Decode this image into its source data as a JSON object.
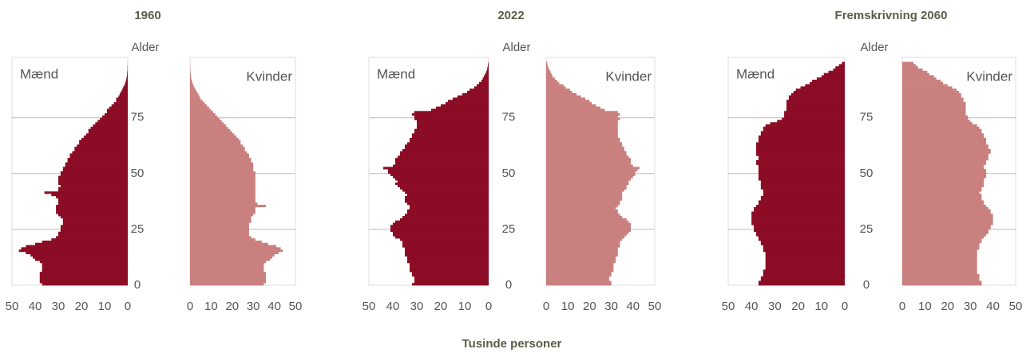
{
  "xlabel": "Tusinde personer",
  "chart_data": [
    {
      "type": "pyramid",
      "title": "1960",
      "ylabel": "Alder",
      "ylim": [
        0,
        102
      ],
      "yticks": [
        0,
        25,
        50,
        75
      ],
      "ages": [
        0,
        1,
        2,
        3,
        4,
        5,
        6,
        7,
        8,
        9,
        10,
        11,
        12,
        13,
        14,
        15,
        16,
        17,
        18,
        19,
        20,
        21,
        22,
        23,
        24,
        25,
        26,
        27,
        28,
        29,
        30,
        31,
        32,
        33,
        34,
        35,
        36,
        37,
        38,
        39,
        40,
        41,
        42,
        43,
        44,
        45,
        46,
        47,
        48,
        49,
        50,
        51,
        52,
        53,
        54,
        55,
        56,
        57,
        58,
        59,
        60,
        61,
        62,
        63,
        64,
        65,
        66,
        67,
        68,
        69,
        70,
        71,
        72,
        73,
        74,
        75,
        76,
        77,
        78,
        79,
        80,
        81,
        82,
        83,
        84,
        85,
        86,
        87,
        88,
        89,
        90,
        91,
        92,
        93,
        94,
        95,
        96,
        97,
        98,
        99
      ],
      "series": [
        {
          "name": "Mænd",
          "color": "#8b0c24",
          "xlim": [
            50,
            0
          ],
          "xticks": [
            50,
            40,
            30,
            20,
            10,
            0
          ],
          "values": [
            37,
            38,
            38,
            38,
            38,
            38,
            37,
            37,
            37,
            37,
            38,
            40,
            41,
            42,
            44,
            47,
            46,
            44,
            40,
            37,
            33,
            31,
            30,
            30,
            29,
            29,
            29,
            28,
            28,
            28,
            29,
            30,
            31,
            31,
            31,
            31,
            30,
            30,
            30,
            31,
            33,
            36,
            30,
            30,
            29,
            30,
            30,
            30,
            30,
            29,
            29,
            28,
            28,
            27,
            27,
            26,
            26,
            25,
            25,
            24,
            23,
            23,
            22,
            21,
            21,
            20,
            19,
            18,
            17,
            17,
            16,
            15,
            14,
            13,
            12,
            11,
            10,
            9,
            9,
            8,
            7,
            6,
            5,
            5,
            4,
            3.5,
            3,
            2.5,
            2,
            1.5,
            1.1,
            0.8,
            0.6,
            0.4,
            0.3,
            0.2,
            0.1,
            0.1,
            0.05,
            0.02
          ]
        },
        {
          "name": "Kvinder",
          "color": "#c9807e",
          "xlim": [
            0,
            50
          ],
          "xticks": [
            0,
            10,
            20,
            30,
            40,
            50
          ],
          "values": [
            35,
            36,
            36,
            36,
            36,
            36,
            35,
            35,
            35,
            35,
            36,
            38,
            39,
            40,
            42,
            44,
            43,
            41,
            37,
            34,
            31,
            29,
            28,
            28,
            28,
            28,
            28,
            28,
            29,
            29,
            29,
            30,
            31,
            31,
            31,
            36,
            32,
            31,
            31,
            31,
            31,
            31,
            31,
            31,
            31,
            31,
            31,
            31,
            31,
            31,
            31,
            30,
            30,
            30,
            30,
            29,
            29,
            28,
            28,
            27,
            26,
            26,
            25,
            24,
            24,
            23,
            22,
            21,
            20,
            19,
            18,
            17,
            16,
            15,
            14,
            13,
            12,
            11,
            10,
            9,
            8,
            7,
            6,
            5,
            4.5,
            4,
            3.3,
            2.7,
            2.1,
            1.6,
            1.2,
            0.9,
            0.6,
            0.4,
            0.3,
            0.2,
            0.1,
            0.1,
            0.05,
            0.02
          ]
        }
      ]
    },
    {
      "type": "pyramid",
      "title": "2022",
      "ylabel": "Alder",
      "ylim": [
        0,
        102
      ],
      "yticks": [
        0,
        25,
        50,
        75
      ],
      "ages": [
        0,
        1,
        2,
        3,
        4,
        5,
        6,
        7,
        8,
        9,
        10,
        11,
        12,
        13,
        14,
        15,
        16,
        17,
        18,
        19,
        20,
        21,
        22,
        23,
        24,
        25,
        26,
        27,
        28,
        29,
        30,
        31,
        32,
        33,
        34,
        35,
        36,
        37,
        38,
        39,
        40,
        41,
        42,
        43,
        44,
        45,
        46,
        47,
        48,
        49,
        50,
        51,
        52,
        53,
        54,
        55,
        56,
        57,
        58,
        59,
        60,
        61,
        62,
        63,
        64,
        65,
        66,
        67,
        68,
        69,
        70,
        71,
        72,
        73,
        74,
        75,
        76,
        77,
        78,
        79,
        80,
        81,
        82,
        83,
        84,
        85,
        86,
        87,
        88,
        89,
        90,
        91,
        92,
        93,
        94,
        95,
        96,
        97,
        98,
        99
      ],
      "series": [
        {
          "name": "Mænd",
          "color": "#8b0c24",
          "xlim": [
            50,
            0
          ],
          "xticks": [
            50,
            40,
            30,
            20,
            10,
            0
          ],
          "values": [
            32,
            31,
            31,
            31,
            32,
            32,
            33,
            33,
            33,
            33,
            34,
            34,
            34,
            35,
            35,
            35,
            35,
            36,
            36,
            36,
            37,
            39,
            40,
            40,
            41,
            41,
            41,
            40,
            39,
            37,
            36,
            35,
            34,
            34,
            33,
            33,
            34,
            35,
            35,
            35,
            34,
            35,
            36,
            37,
            38,
            39,
            38,
            39,
            40,
            41,
            42,
            42,
            44,
            40,
            39,
            39,
            39,
            38,
            37,
            37,
            36,
            35,
            35,
            34,
            33,
            33,
            32,
            32,
            31,
            31,
            30,
            30,
            30,
            30,
            31,
            31,
            32,
            31,
            24,
            22,
            20,
            18,
            17,
            15,
            13,
            11,
            9,
            8,
            6,
            5,
            4,
            3,
            2.5,
            2,
            1.5,
            1,
            0.7,
            0.5,
            0.3,
            0.2
          ]
        },
        {
          "name": "Kvinder",
          "color": "#c9807e",
          "xlim": [
            0,
            50
          ],
          "xticks": [
            0,
            10,
            20,
            30,
            40,
            50
          ],
          "values": [
            30,
            30,
            29,
            29,
            30,
            30,
            31,
            31,
            31,
            31,
            32,
            32,
            32,
            33,
            33,
            33,
            33,
            34,
            34,
            34,
            35,
            36,
            37,
            38,
            39,
            39,
            39,
            39,
            38,
            37,
            35,
            34,
            33,
            33,
            32,
            33,
            34,
            34,
            35,
            35,
            35,
            35,
            36,
            37,
            37,
            38,
            38,
            39,
            40,
            41,
            41,
            42,
            43,
            40,
            39,
            39,
            39,
            38,
            37,
            37,
            36,
            36,
            35,
            35,
            34,
            34,
            33,
            33,
            33,
            33,
            33,
            33,
            33,
            33,
            34,
            33,
            34,
            33,
            27,
            25,
            23,
            21,
            20,
            18,
            16,
            14,
            12,
            11,
            9,
            8,
            6,
            5,
            4,
            3,
            2.5,
            2,
            1.5,
            1,
            0.7,
            0.5
          ]
        }
      ]
    },
    {
      "type": "pyramid",
      "title": "Fremskrivning 2060",
      "ylabel": "Alder",
      "ylim": [
        0,
        102
      ],
      "yticks": [
        0,
        25,
        50,
        75
      ],
      "ages": [
        0,
        1,
        2,
        3,
        4,
        5,
        6,
        7,
        8,
        9,
        10,
        11,
        12,
        13,
        14,
        15,
        16,
        17,
        18,
        19,
        20,
        21,
        22,
        23,
        24,
        25,
        26,
        27,
        28,
        29,
        30,
        31,
        32,
        33,
        34,
        35,
        36,
        37,
        38,
        39,
        40,
        41,
        42,
        43,
        44,
        45,
        46,
        47,
        48,
        49,
        50,
        51,
        52,
        53,
        54,
        55,
        56,
        57,
        58,
        59,
        60,
        61,
        62,
        63,
        64,
        65,
        66,
        67,
        68,
        69,
        70,
        71,
        72,
        73,
        74,
        75,
        76,
        77,
        78,
        79,
        80,
        81,
        82,
        83,
        84,
        85,
        86,
        87,
        88,
        89,
        90,
        91,
        92,
        93,
        94,
        95,
        96,
        97,
        98,
        99
      ],
      "series": [
        {
          "name": "Mænd",
          "color": "#8b0c24",
          "xlim": [
            50,
            0
          ],
          "xticks": [
            50,
            40,
            30,
            20,
            10,
            0
          ],
          "values": [
            37,
            37,
            36,
            36,
            35,
            35,
            35,
            34,
            34,
            34,
            34,
            34,
            34,
            34,
            34,
            35,
            35,
            35,
            36,
            36,
            37,
            37,
            38,
            38,
            39,
            39,
            39,
            40,
            40,
            40,
            40,
            40,
            40,
            39,
            39,
            38,
            37,
            37,
            36,
            36,
            35,
            35,
            35,
            36,
            36,
            36,
            36,
            37,
            37,
            37,
            37,
            37,
            37,
            37,
            38,
            38,
            37,
            37,
            38,
            38,
            38,
            38,
            38,
            38,
            37,
            37,
            37,
            36,
            36,
            35,
            35,
            34,
            32,
            29,
            27,
            26,
            26,
            26,
            25,
            25,
            25,
            25,
            25,
            24,
            24,
            23,
            22,
            21,
            19,
            17,
            15,
            14,
            12,
            10,
            9,
            7,
            5,
            4,
            2.5,
            1.2
          ]
        },
        {
          "name": "Kvinder",
          "color": "#c9807e",
          "xlim": [
            0,
            50
          ],
          "xticks": [
            0,
            10,
            20,
            30,
            40,
            50
          ],
          "values": [
            35,
            35,
            34,
            34,
            34,
            33,
            33,
            33,
            33,
            33,
            33,
            33,
            33,
            33,
            33,
            33,
            34,
            34,
            34,
            35,
            35,
            36,
            37,
            38,
            38,
            39,
            39,
            40,
            40,
            40,
            40,
            40,
            39,
            39,
            38,
            37,
            36,
            36,
            35,
            35,
            35,
            34,
            35,
            35,
            36,
            36,
            36,
            36,
            37,
            37,
            37,
            37,
            36,
            36,
            37,
            37,
            38,
            38,
            38,
            39,
            39,
            38,
            38,
            37,
            37,
            37,
            36,
            36,
            35,
            35,
            34,
            33,
            31,
            30,
            29,
            29,
            28,
            28,
            28,
            28,
            28,
            28,
            27,
            27,
            26,
            26,
            25,
            24,
            22,
            20,
            18,
            17,
            15,
            14,
            12,
            11,
            9,
            7,
            6,
            5
          ]
        }
      ]
    }
  ]
}
